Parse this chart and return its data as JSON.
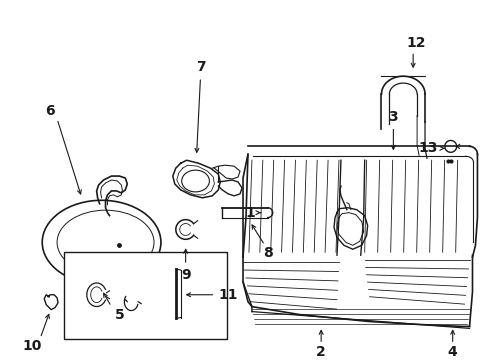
{
  "background_color": "#ffffff",
  "line_color": "#1a1a1a",
  "label_color": "#000000",
  "label_fontsize": 9,
  "figsize": [
    4.9,
    3.6
  ],
  "dpi": 100
}
